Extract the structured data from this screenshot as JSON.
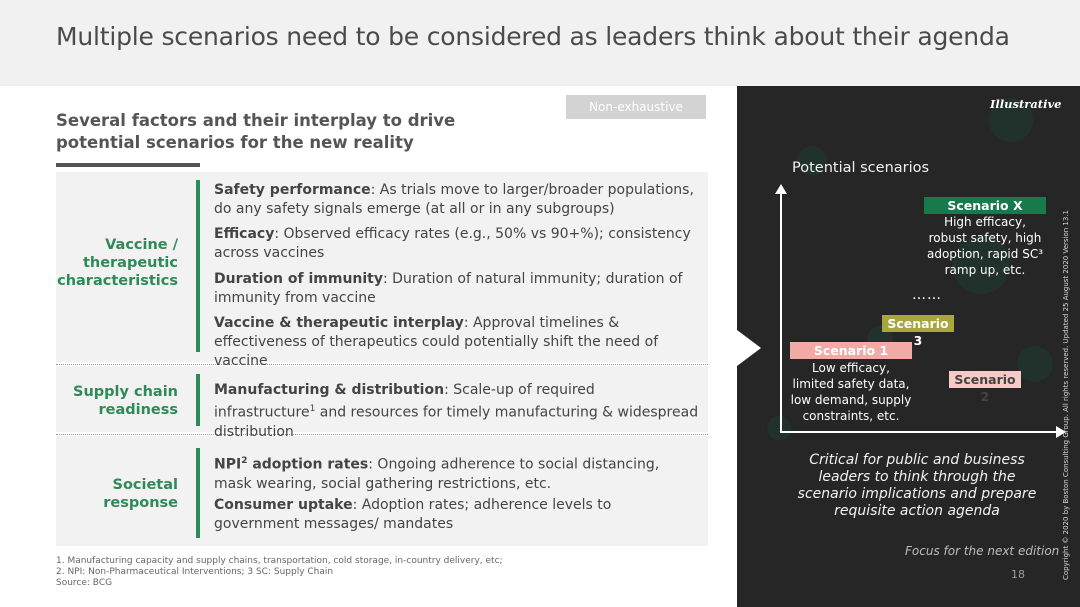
{
  "header": {
    "title": "Multiple scenarios need to be considered as leaders think about their agenda"
  },
  "left": {
    "subtitle_line1": "Several factors and their interplay to drive",
    "subtitle_line2": "potential scenarios for the new reality",
    "badge": "Non-exhaustive",
    "categories": [
      {
        "label_lines": [
          "Vaccine /",
          "therapeutic",
          "characteristics"
        ],
        "items": [
          {
            "bold": "Safety performance",
            "text": ": As trials move to larger/broader populations, do any safety signals emerge (at all or in any subgroups)"
          },
          {
            "bold": "Efficacy",
            "text": ": Observed efficacy rates (e.g., 50% vs 90+%); consistency across vaccines"
          },
          {
            "bold": "Duration of immunity",
            "text": ": Duration of natural immunity; duration of immunity from vaccine"
          },
          {
            "bold": "Vaccine & therapeutic interplay",
            "text": ": Approval timelines & effectiveness of therapeutics could potentially shift the need of vaccine"
          }
        ]
      },
      {
        "label_lines": [
          "Supply chain",
          "readiness"
        ],
        "items": [
          {
            "bold": "Manufacturing & distribution",
            "text": ": Scale-up of required infrastructure",
            "sup": "1",
            "text2": " and resources for timely manufacturing & widespread distribution"
          }
        ]
      },
      {
        "label_lines": [
          "Societal",
          "response"
        ],
        "items": [
          {
            "bold": "NPI",
            "sup": "2",
            "bold2": " adoption rates",
            "text": ": Ongoing adherence to social distancing, mask wearing, social gathering restrictions, etc."
          },
          {
            "bold": "Consumer uptake",
            "text": ": Adoption rates; adherence levels to government messages/ mandates"
          }
        ]
      }
    ],
    "footnotes": [
      "1. Manufacturing capacity and supply chains, transportation, cold storage, in-country delivery, etc;",
      "2. NPI: Non-Pharmaceutical Interventions;  3 SC: Supply Chain",
      "Source: BCG"
    ]
  },
  "right": {
    "illustrative": "Illustrative",
    "chart_title": "Potential scenarios",
    "scenario_x": {
      "label": "Scenario X",
      "desc_lines": [
        "High efficacy,",
        "robust safety, high",
        "adoption, rapid SC³",
        "ramp up, etc."
      ]
    },
    "dots": "……",
    "scenario_3": {
      "label": "Scenario 3"
    },
    "scenario_1": {
      "label": "Scenario 1",
      "desc_lines": [
        "Low efficacy,",
        "limited safety data,",
        "low demand, supply",
        "constraints, etc."
      ]
    },
    "scenario_2": {
      "label": "Scenario 2"
    },
    "critical_lines": [
      "Critical for public and business",
      "leaders to think through the",
      "scenario implications and prepare",
      "requisite action agenda"
    ],
    "focus": "Focus for the next edition",
    "page_number": "18",
    "copyright": "Copyright © 2020 by Boston Consulting Group. All rights reserved.  Updated 25 August 2020 Version 13.1",
    "colors": {
      "accent_green": "#2e8b57",
      "scenario_x": "#177a4d",
      "scenario_3": "#a8a73d",
      "scenario_1": "#f2aaa7",
      "scenario_2": "#f7c9c7",
      "dark_panel": "#262626"
    }
  }
}
